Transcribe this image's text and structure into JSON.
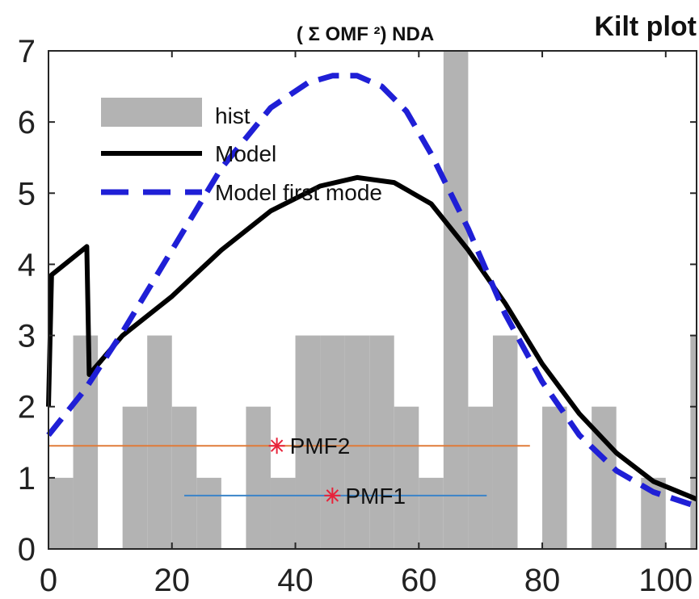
{
  "chart_data": {
    "type": "bar",
    "title": "( Σ OMF ²) NDA",
    "title_right": "Kilt plot",
    "xlim": [
      0,
      105
    ],
    "ylim": [
      0,
      7
    ],
    "xticks": [
      0,
      20,
      40,
      60,
      80,
      100
    ],
    "yticks": [
      0,
      1,
      2,
      3,
      4,
      5,
      6,
      7
    ],
    "grid": false,
    "legend_position": "top-left",
    "colors": {
      "hist": "#b3b3b3",
      "model": "#000000",
      "first_mode": "#1f1fd6",
      "pmf2": "#e07b39",
      "pmf1": "#3a84c9",
      "marker": "#e8233a"
    },
    "legend": [
      {
        "key": "hist",
        "label": "hist"
      },
      {
        "key": "model",
        "label": "Model"
      },
      {
        "key": "first_mode",
        "label": "Model first mode"
      }
    ],
    "histogram": {
      "bin_width": 4,
      "bins": [
        {
          "x": 0,
          "count": 1
        },
        {
          "x": 4,
          "count": 3
        },
        {
          "x": 8,
          "count": 0
        },
        {
          "x": 12,
          "count": 2
        },
        {
          "x": 16,
          "count": 3
        },
        {
          "x": 20,
          "count": 2
        },
        {
          "x": 24,
          "count": 1
        },
        {
          "x": 28,
          "count": 0
        },
        {
          "x": 32,
          "count": 2
        },
        {
          "x": 36,
          "count": 1
        },
        {
          "x": 40,
          "count": 3
        },
        {
          "x": 44,
          "count": 3
        },
        {
          "x": 48,
          "count": 3
        },
        {
          "x": 52,
          "count": 3
        },
        {
          "x": 56,
          "count": 2
        },
        {
          "x": 60,
          "count": 1
        },
        {
          "x": 64,
          "count": 7
        },
        {
          "x": 68,
          "count": 2
        },
        {
          "x": 72,
          "count": 3
        },
        {
          "x": 76,
          "count": 0
        },
        {
          "x": 80,
          "count": 2
        },
        {
          "x": 84,
          "count": 0
        },
        {
          "x": 88,
          "count": 2
        },
        {
          "x": 92,
          "count": 0
        },
        {
          "x": 96,
          "count": 1
        },
        {
          "x": 100,
          "count": 0
        },
        {
          "x": 104,
          "count": 3
        }
      ]
    },
    "series": [
      {
        "key": "model",
        "x": [
          0,
          0.5,
          6.2,
          6.6,
          12,
          20,
          28,
          36,
          44,
          50,
          56,
          62,
          68,
          74,
          80,
          86,
          92,
          98,
          105
        ],
        "y": [
          2.0,
          3.85,
          4.25,
          2.45,
          3.0,
          3.55,
          4.2,
          4.75,
          5.1,
          5.22,
          5.15,
          4.85,
          4.2,
          3.45,
          2.6,
          1.9,
          1.35,
          0.95,
          0.7
        ]
      },
      {
        "key": "first_mode",
        "x": [
          0,
          6,
          12,
          20,
          28,
          36,
          42,
          46,
          50,
          54,
          58,
          62,
          68,
          74,
          80,
          86,
          92,
          98,
          105
        ],
        "y": [
          1.6,
          2.25,
          3.05,
          4.2,
          5.35,
          6.2,
          6.55,
          6.65,
          6.65,
          6.5,
          6.15,
          5.55,
          4.5,
          3.3,
          2.35,
          1.6,
          1.1,
          0.8,
          0.6
        ]
      }
    ],
    "intervals": [
      {
        "key": "pmf2",
        "label": "PMF2",
        "y": 1.45,
        "x_start": 0,
        "x_end": 78,
        "marker_x": 37
      },
      {
        "key": "pmf1",
        "label": "PMF1",
        "y": 0.75,
        "x_start": 22,
        "x_end": 71,
        "marker_x": 46
      }
    ]
  }
}
